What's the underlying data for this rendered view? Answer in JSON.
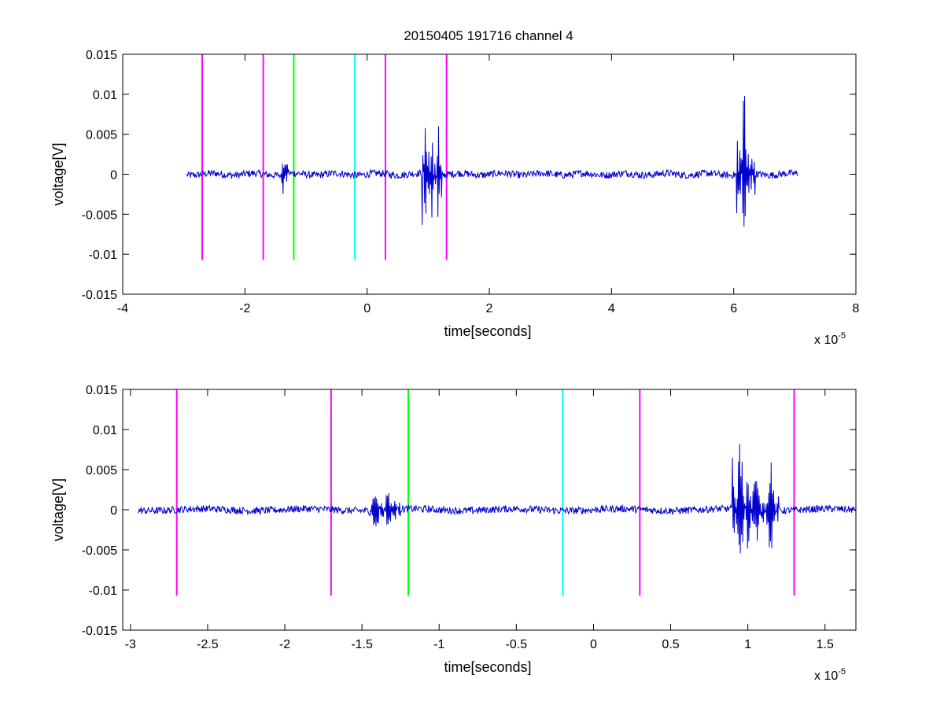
{
  "chart_data": [
    {
      "type": "line",
      "title": "20150405 191716 channel 4",
      "xlabel": "time[seconds]",
      "ylabel": "voltage[V]",
      "x_multiplier_base": "x 10",
      "x_multiplier_exp": "-5",
      "xlim": [
        -4,
        8
      ],
      "ylim": [
        -0.015,
        0.015
      ],
      "x_ticks": [
        -4,
        -2,
        0,
        2,
        4,
        6,
        8
      ],
      "x_tick_labels": [
        "-4",
        "-2",
        "0",
        "2",
        "4",
        "6",
        "8"
      ],
      "y_ticks": [
        0.015,
        0.01,
        0.005,
        0,
        -0.005,
        -0.01,
        -0.015
      ],
      "y_tick_labels": [
        "0.015",
        "0.01",
        "0.005",
        "0",
        "-0.005",
        "-0.01",
        "-0.015"
      ],
      "grid": false,
      "series": [
        {
          "color": "#0000cc",
          "x_range": [
            -2.95,
            7.05
          ],
          "bursts": [
            {
              "x": -1.42,
              "x_end": -1.28,
              "peaks": [
                0.0015,
                -0.004,
                0.0018,
                -0.003,
                0.0013
              ]
            },
            {
              "x": 0.9,
              "x_end": 1.22,
              "peaks": [
                0.007,
                -0.0095,
                0.0058,
                -0.006,
                0.004,
                -0.007,
                0.004
              ]
            },
            {
              "x": 6.05,
              "x_end": 6.35,
              "peaks": [
                0.0075,
                -0.007,
                0.0135,
                -0.0045,
                0.003,
                -0.0048
              ]
            }
          ]
        }
      ],
      "vlines": [
        {
          "x": -2.7,
          "color": "#ff00ff",
          "y_range": [
            -0.0107,
            0.015
          ]
        },
        {
          "x": -1.7,
          "color": "#ff00ff",
          "y_range": [
            -0.0107,
            0.015
          ]
        },
        {
          "x": -1.2,
          "color": "#00ff00",
          "y_range": [
            -0.0107,
            0.015
          ]
        },
        {
          "x": -0.2,
          "color": "#00ffff",
          "y_range": [
            -0.0107,
            0.015
          ]
        },
        {
          "x": 0.3,
          "color": "#ff00ff",
          "y_range": [
            -0.0107,
            0.015
          ]
        },
        {
          "x": 1.3,
          "color": "#ff00ff",
          "y_range": [
            -0.0107,
            0.015
          ]
        }
      ]
    },
    {
      "type": "line",
      "title": "",
      "xlabel": "time[seconds]",
      "ylabel": "voltage[V]",
      "x_multiplier_base": "x 10",
      "x_multiplier_exp": "-5",
      "xlim": [
        -3.05,
        1.7
      ],
      "ylim": [
        -0.015,
        0.015
      ],
      "x_ticks": [
        -3,
        -2.5,
        -2,
        -1.5,
        -1,
        -0.5,
        0,
        0.5,
        1,
        1.5
      ],
      "x_tick_labels": [
        "-3",
        "-2.5",
        "-2",
        "-1.5",
        "-1",
        "-0.5",
        "0",
        "0.5",
        "1",
        "1.5"
      ],
      "y_ticks": [
        0.015,
        0.01,
        0.005,
        0,
        -0.005,
        -0.01,
        -0.015
      ],
      "y_tick_labels": [
        "0.015",
        "0.01",
        "0.005",
        "0",
        "-0.005",
        "-0.01",
        "-0.015"
      ],
      "grid": false,
      "series": [
        {
          "color": "#0000cc",
          "x_range": [
            -2.95,
            1.7
          ],
          "bursts": [
            {
              "x": -1.45,
              "x_end": -1.25,
              "peaks": [
                0.001,
                -0.004,
                0.0018,
                -0.003,
                0.0015,
                -0.0015
              ]
            },
            {
              "x": 0.9,
              "x_end": 1.2,
              "peaks": [
                0.007,
                -0.0097,
                0.0055,
                -0.006,
                0.002,
                -0.007,
                0.004
              ]
            }
          ]
        }
      ],
      "vlines": [
        {
          "x": -2.7,
          "color": "#ff00ff",
          "y_range": [
            -0.0107,
            0.015
          ]
        },
        {
          "x": -1.7,
          "color": "#ff00ff",
          "y_range": [
            -0.0107,
            0.015
          ]
        },
        {
          "x": -1.2,
          "color": "#00ff00",
          "y_range": [
            -0.0107,
            0.015
          ]
        },
        {
          "x": -0.2,
          "color": "#00ffff",
          "y_range": [
            -0.0107,
            0.015
          ]
        },
        {
          "x": 0.3,
          "color": "#ff00ff",
          "y_range": [
            -0.0107,
            0.015
          ]
        },
        {
          "x": 1.3,
          "color": "#ff00ff",
          "y_range": [
            -0.0107,
            0.015
          ]
        }
      ]
    }
  ]
}
